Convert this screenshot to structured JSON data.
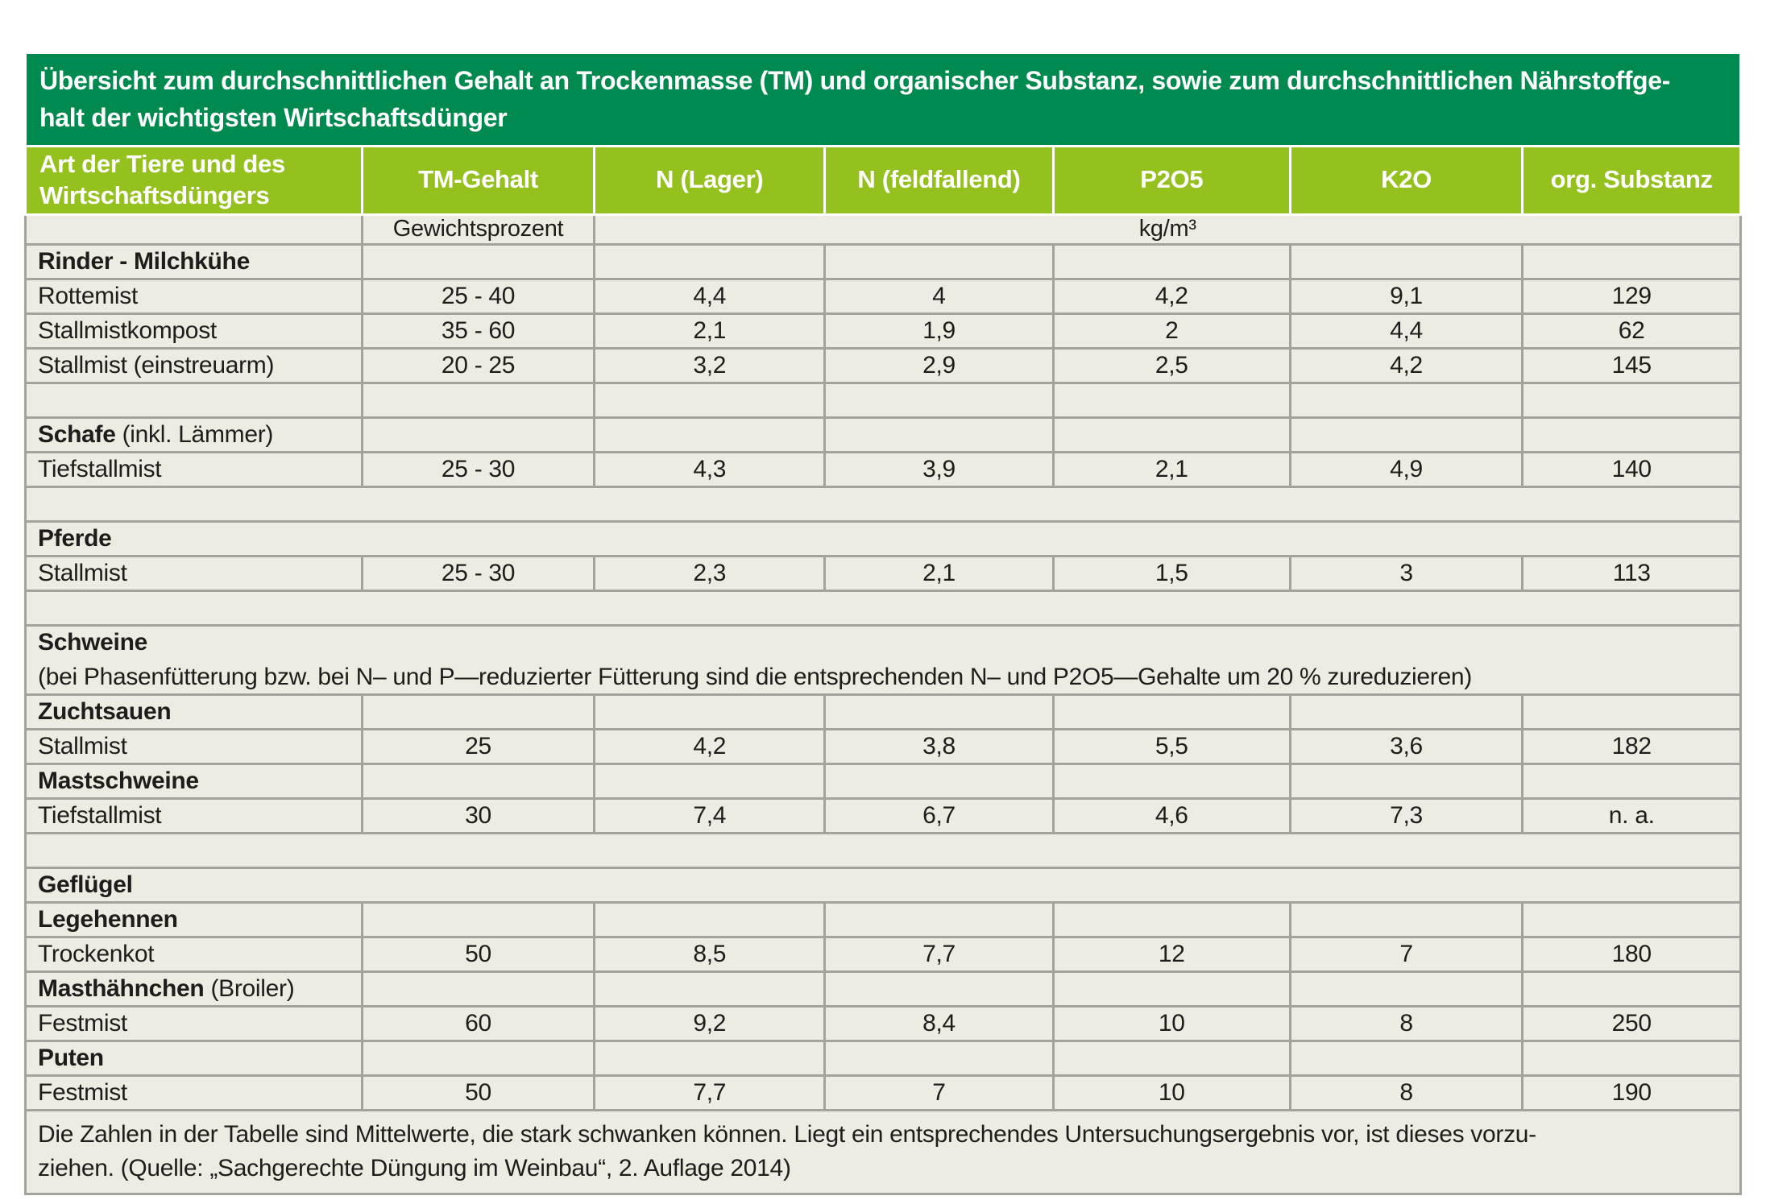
{
  "colors": {
    "dark_green": "#008A50",
    "light_green": "#95C11F",
    "body_bg": "#EEEBE3",
    "border_gray": "#A4A39B"
  },
  "title": {
    "line1": "Übersicht zum durchschnittlichen Gehalt an Trockenmasse (TM) und organischer Substanz, sowie zum durchschnittlichen Nährstoffge-",
    "line2": "halt der wichtigsten Wirtschaftsdünger"
  },
  "columns": [
    "Art der Tiere und des Wirtschaftsdüngers",
    "TM-Gehalt",
    "N (Lager)",
    "N (feldfallend)",
    "P2O5",
    "K2O",
    "org. Substanz"
  ],
  "units": {
    "weight_percent": "Gewichtsprozent",
    "kg_per_m3": "kg/m³"
  },
  "rows": [
    {
      "type": "section",
      "label": "Rinder - Milchkühe"
    },
    {
      "type": "data",
      "label": "Rottemist",
      "values": [
        "25 - 40",
        "4,4",
        "4",
        "4,2",
        "9,1",
        "129"
      ]
    },
    {
      "type": "data",
      "label": "Stallmistkompost",
      "values": [
        "35 - 60",
        "2,1",
        "1,9",
        "2",
        "4,4",
        "62"
      ]
    },
    {
      "type": "data",
      "label": "Stallmist (einstreuarm)",
      "values": [
        "20 - 25",
        "3,2",
        "2,9",
        "2,5",
        "4,2",
        "145"
      ]
    },
    {
      "type": "empty"
    },
    {
      "type": "section",
      "label": "Schafe",
      "suffix": "(inkl. Lämmer)"
    },
    {
      "type": "data",
      "label": "Tiefstallmist",
      "values": [
        "25 - 30",
        "4,3",
        "3,9",
        "2,1",
        "4,9",
        "140"
      ]
    },
    {
      "type": "empty_full"
    },
    {
      "type": "section_full",
      "label": "Pferde"
    },
    {
      "type": "data",
      "label": "Stallmist",
      "values": [
        "25 - 30",
        "2,3",
        "2,1",
        "1,5",
        "3",
        "113"
      ]
    },
    {
      "type": "empty_full"
    },
    {
      "type": "section_full",
      "label": "Schweine",
      "join_below": true
    },
    {
      "type": "note_full",
      "text": "(bei Phasenfütterung bzw. bei N– und P—reduzierter Fütterung sind die entsprechenden N– und P2O5—Gehalte um 20 % zureduzieren)"
    },
    {
      "type": "section",
      "label": "Zuchtsauen"
    },
    {
      "type": "data",
      "label": "Stallmist",
      "values": [
        "25",
        "4,2",
        "3,8",
        "5,5",
        "3,6",
        "182"
      ]
    },
    {
      "type": "section",
      "label": "Mastschweine"
    },
    {
      "type": "data",
      "label": "Tiefstallmist",
      "values": [
        "30",
        "7,4",
        "6,7",
        "4,6",
        "7,3",
        "n. a."
      ]
    },
    {
      "type": "empty_full"
    },
    {
      "type": "section_full",
      "label": "Geflügel"
    },
    {
      "type": "section",
      "label": "Legehennen"
    },
    {
      "type": "data",
      "label": "Trockenkot",
      "values": [
        "50",
        "8,5",
        "7,7",
        "12",
        "7",
        "180"
      ]
    },
    {
      "type": "section",
      "label": "Masthähnchen",
      "suffix": "(Broiler)"
    },
    {
      "type": "data",
      "label": "Festmist",
      "values": [
        "60",
        "9,2",
        "8,4",
        "10",
        "8",
        "250"
      ]
    },
    {
      "type": "section",
      "label": "Puten"
    },
    {
      "type": "data",
      "label": "Festmist",
      "values": [
        "50",
        "7,7",
        "7",
        "10",
        "8",
        "190"
      ]
    }
  ],
  "footer": {
    "line1": "Die Zahlen in der Tabelle sind Mittelwerte, die stark schwanken können. Liegt ein entsprechendes Untersuchungsergebnis vor, ist dieses vorzu-",
    "line2": "ziehen. (Quelle: „Sachgerechte Düngung im Weinbau“, 2. Auflage 2014)"
  }
}
